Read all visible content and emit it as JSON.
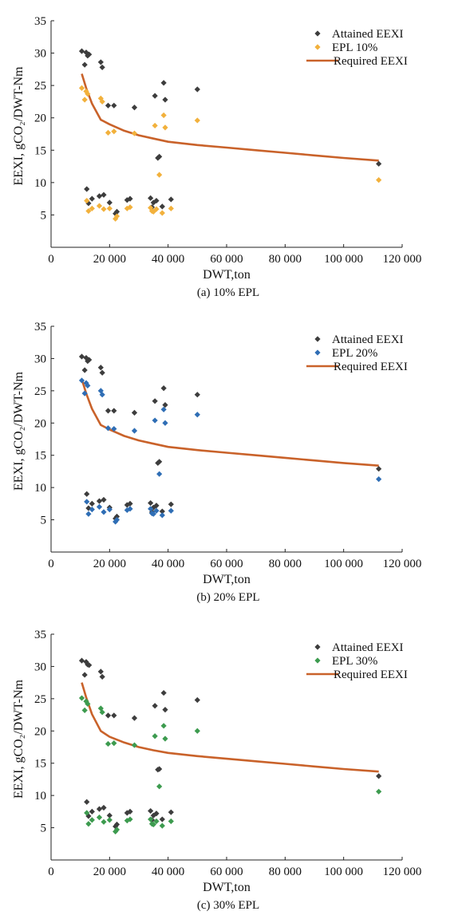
{
  "chart_data": [
    {
      "type": "scatter",
      "caption": "(a) 10% EPL",
      "xlabel": "DWT,ton",
      "ylabel": "EEXI, gCO₂/DWT-Nm",
      "xlim": [
        0,
        120000
      ],
      "ylim": [
        0,
        35
      ],
      "xticks": [
        0,
        20000,
        40000,
        60000,
        80000,
        100000,
        120000
      ],
      "xtick_labels": [
        "0",
        "20 000",
        "40 000",
        "60 000",
        "80 000",
        "100 000",
        "120 000"
      ],
      "yticks": [
        5,
        10,
        15,
        20,
        25,
        30,
        35
      ],
      "ytick_labels": [
        "5",
        "10",
        "15",
        "20",
        "25",
        "30",
        "35"
      ],
      "grid": false,
      "legend_position": "top-right",
      "series": [
        {
          "name": "Attained EEXI",
          "kind": "scatter",
          "marker": "diamond",
          "color": "#3d3d3d",
          "x": [
            10500,
            11500,
            12000,
            12200,
            12500,
            12800,
            13000,
            14000,
            16500,
            17000,
            17500,
            18000,
            19500,
            20000,
            21500,
            22000,
            22500,
            26000,
            27000,
            28500,
            34000,
            34500,
            35000,
            35500,
            36000,
            36500,
            37000,
            38000,
            38500,
            39000,
            41000,
            50000,
            112000
          ],
          "y": [
            30.3,
            28.2,
            30.1,
            9.0,
            29.6,
            6.8,
            29.8,
            7.5,
            7.9,
            28.6,
            27.8,
            8.1,
            21.9,
            6.9,
            21.9,
            5.2,
            5.5,
            7.3,
            7.5,
            21.6,
            7.6,
            6.2,
            6.9,
            23.4,
            7.2,
            13.8,
            14.0,
            6.3,
            25.4,
            22.8,
            7.4,
            24.4,
            12.9
          ]
        },
        {
          "name": "EPL 10%",
          "kind": "scatter",
          "marker": "diamond",
          "color": "#f2b13c",
          "x": [
            10500,
            11500,
            12000,
            12200,
            12500,
            12800,
            14000,
            16500,
            17000,
            17500,
            18000,
            19500,
            20000,
            21500,
            22000,
            22500,
            26000,
            27000,
            28500,
            34000,
            34500,
            35000,
            35500,
            36000,
            37000,
            38000,
            38500,
            39000,
            41000,
            50000,
            112000
          ],
          "y": [
            24.6,
            22.8,
            24.1,
            7.2,
            23.7,
            5.6,
            6.0,
            6.4,
            23.0,
            22.5,
            5.9,
            17.7,
            6.0,
            17.9,
            4.4,
            4.8,
            6.0,
            6.2,
            17.6,
            6.1,
            5.6,
            5.5,
            18.8,
            5.9,
            11.2,
            5.3,
            20.4,
            18.5,
            6.0,
            19.6,
            10.4
          ]
        },
        {
          "name": "Required EEXI",
          "kind": "line",
          "color": "#c9622a",
          "x": [
            10500,
            12000,
            14000,
            17000,
            20000,
            25000,
            30000,
            35000,
            40000,
            50000,
            60000,
            70000,
            80000,
            90000,
            100000,
            112000
          ],
          "y": [
            26.8,
            24.6,
            22.2,
            19.7,
            19.0,
            18.0,
            17.3,
            16.8,
            16.3,
            15.8,
            15.4,
            15.0,
            14.6,
            14.2,
            13.8,
            13.4
          ]
        }
      ]
    },
    {
      "type": "scatter",
      "caption": "(b) 20% EPL",
      "xlabel": "DWT,ton",
      "ylabel": "EEXI, gCO₂/DWT-Nm",
      "xlim": [
        0,
        120000
      ],
      "ylim": [
        0,
        35
      ],
      "xticks": [
        0,
        20000,
        40000,
        60000,
        80000,
        100000,
        120000
      ],
      "xtick_labels": [
        "0",
        "20 000",
        "40 000",
        "60 000",
        "80 000",
        "100 000",
        "120 000"
      ],
      "yticks": [
        5,
        10,
        15,
        20,
        25,
        30,
        35
      ],
      "ytick_labels": [
        "5",
        "10",
        "15",
        "20",
        "25",
        "30",
        "35"
      ],
      "grid": false,
      "legend_position": "top-right",
      "series": [
        {
          "name": "Attained EEXI",
          "kind": "scatter",
          "marker": "diamond",
          "color": "#3d3d3d",
          "x": [
            10500,
            11500,
            12000,
            12200,
            12500,
            12800,
            13000,
            14000,
            16500,
            17000,
            17500,
            18000,
            19500,
            20000,
            21500,
            22000,
            22500,
            26000,
            27000,
            28500,
            34000,
            34500,
            35000,
            35500,
            36000,
            36500,
            37000,
            38000,
            38500,
            39000,
            41000,
            50000,
            112000
          ],
          "y": [
            30.3,
            28.2,
            30.1,
            9.0,
            29.6,
            6.8,
            29.8,
            7.5,
            7.9,
            28.6,
            27.8,
            8.1,
            21.9,
            6.9,
            21.9,
            5.2,
            5.5,
            7.3,
            7.5,
            21.6,
            7.6,
            6.2,
            6.9,
            23.4,
            7.2,
            13.8,
            14.0,
            6.3,
            25.4,
            22.8,
            7.4,
            24.4,
            12.9
          ]
        },
        {
          "name": "EPL 20%",
          "kind": "scatter",
          "marker": "diamond",
          "color": "#2f6eb5",
          "x": [
            10500,
            11500,
            12000,
            12200,
            12500,
            12800,
            14000,
            16500,
            17000,
            17500,
            18000,
            19500,
            20000,
            21500,
            22000,
            22500,
            26000,
            27000,
            28500,
            34000,
            34500,
            35000,
            35500,
            36000,
            37000,
            38000,
            38500,
            39000,
            41000,
            50000,
            112000
          ],
          "y": [
            26.6,
            24.6,
            26.2,
            7.8,
            25.8,
            5.9,
            6.6,
            7.0,
            25.0,
            24.4,
            6.2,
            19.2,
            6.6,
            19.1,
            4.7,
            5.0,
            6.5,
            6.7,
            18.8,
            6.7,
            6.0,
            5.9,
            20.4,
            6.4,
            12.1,
            5.7,
            22.1,
            20.0,
            6.4,
            21.3,
            11.3
          ]
        },
        {
          "name": "Required EEXI",
          "kind": "line",
          "color": "#c9622a",
          "x": [
            10500,
            12000,
            14000,
            17000,
            20000,
            25000,
            30000,
            35000,
            40000,
            50000,
            60000,
            70000,
            80000,
            90000,
            100000,
            112000
          ],
          "y": [
            26.8,
            24.6,
            22.2,
            19.7,
            19.0,
            18.0,
            17.3,
            16.8,
            16.3,
            15.8,
            15.4,
            15.0,
            14.6,
            14.2,
            13.8,
            13.4
          ]
        }
      ]
    },
    {
      "type": "scatter",
      "caption": "(c) 30% EPL",
      "xlabel": "DWT,ton",
      "ylabel": "EEXI, gCO₂/DWT-Nm",
      "xlim": [
        0,
        120000
      ],
      "ylim": [
        0,
        35
      ],
      "xticks": [
        0,
        20000,
        40000,
        60000,
        80000,
        100000,
        120000
      ],
      "xtick_labels": [
        "0",
        "20 000",
        "40 000",
        "60 000",
        "80 000",
        "100 000",
        "120 000"
      ],
      "yticks": [
        5,
        10,
        15,
        20,
        25,
        30,
        35
      ],
      "ytick_labels": [
        "5",
        "10",
        "15",
        "20",
        "25",
        "30",
        "35"
      ],
      "grid": false,
      "legend_position": "top-right",
      "series": [
        {
          "name": "Attained EEXI",
          "kind": "scatter",
          "marker": "diamond",
          "color": "#3d3d3d",
          "x": [
            10500,
            11500,
            12000,
            12200,
            12500,
            12800,
            13000,
            14000,
            16500,
            17000,
            17500,
            18000,
            19500,
            20000,
            21500,
            22000,
            22500,
            26000,
            27000,
            28500,
            34000,
            34500,
            35000,
            35500,
            36000,
            36500,
            37000,
            38000,
            38500,
            39000,
            41000,
            50000,
            112000
          ],
          "y": [
            30.9,
            28.7,
            30.7,
            9.0,
            30.3,
            6.8,
            30.2,
            7.5,
            7.9,
            29.2,
            28.4,
            8.1,
            22.4,
            6.9,
            22.4,
            5.2,
            5.5,
            7.3,
            7.5,
            22.0,
            7.6,
            6.2,
            6.9,
            23.9,
            7.2,
            14.0,
            14.1,
            6.3,
            25.9,
            23.3,
            7.4,
            24.8,
            13.0
          ]
        },
        {
          "name": "EPL 30%",
          "kind": "scatter",
          "marker": "diamond",
          "color": "#3d9b4f",
          "x": [
            10500,
            11500,
            12000,
            12200,
            12500,
            12800,
            14000,
            16500,
            17000,
            17500,
            18000,
            19500,
            20000,
            21500,
            22000,
            22500,
            26000,
            27000,
            28500,
            34000,
            34500,
            35000,
            35500,
            36000,
            37000,
            38000,
            38500,
            39000,
            41000,
            50000,
            112000
          ],
          "y": [
            25.1,
            23.2,
            24.6,
            7.3,
            24.2,
            5.6,
            6.2,
            6.6,
            23.5,
            22.9,
            5.9,
            18.0,
            6.2,
            18.1,
            4.4,
            4.7,
            6.1,
            6.3,
            17.8,
            6.3,
            5.6,
            5.5,
            19.2,
            6.0,
            11.4,
            5.3,
            20.8,
            18.8,
            6.0,
            20.0,
            10.6
          ]
        },
        {
          "name": "Required EEXI",
          "kind": "line",
          "color": "#c9622a",
          "x": [
            10500,
            12000,
            14000,
            17000,
            20000,
            25000,
            30000,
            35000,
            40000,
            50000,
            60000,
            70000,
            80000,
            90000,
            100000,
            112000
          ],
          "y": [
            27.5,
            25.2,
            22.6,
            20.0,
            19.1,
            18.2,
            17.5,
            17.0,
            16.6,
            16.1,
            15.7,
            15.3,
            14.9,
            14.5,
            14.1,
            13.7
          ]
        }
      ]
    }
  ]
}
